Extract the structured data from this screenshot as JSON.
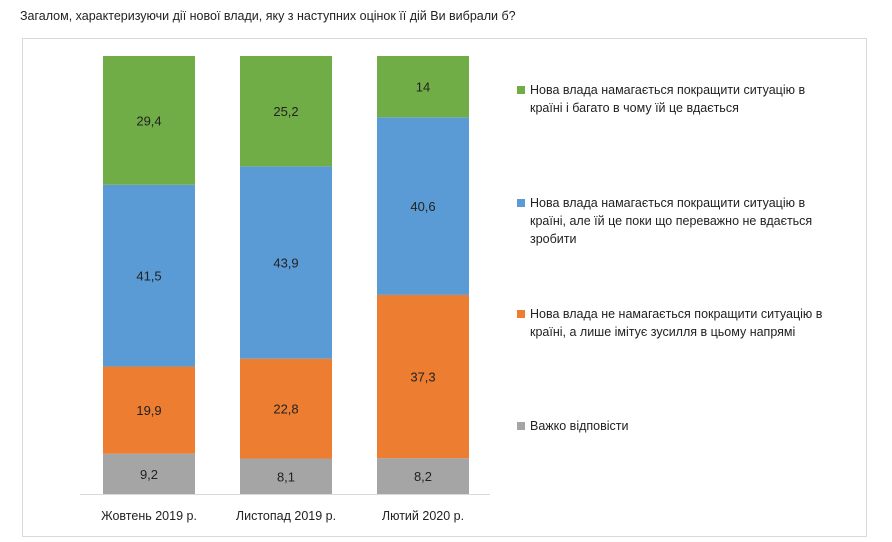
{
  "chart_data": {
    "type": "bar",
    "stacked": true,
    "title": "Загалом, характеризуючи дії нової влади, яку з наступних оцінок її дій Ви вибрали б?",
    "categories": [
      "Жовтень 2019 р.",
      "Листопад 2019 р.",
      "Лютий 2020 р."
    ],
    "series": [
      {
        "name": "Важко відповісти",
        "color": "#a5a5a5",
        "values": [
          9.2,
          8.1,
          8.2
        ],
        "labels": [
          "9,2",
          "8,1",
          "8,2"
        ],
        "legend_lines": [
          "Важко відповісти"
        ]
      },
      {
        "name": "Нова влада не намагається покращити ситуацію в країні, а лише імітує зусилля в цьому напрямі",
        "color": "#ed7d31",
        "values": [
          19.9,
          22.8,
          37.3
        ],
        "labels": [
          "19,9",
          "22,8",
          "37,3"
        ],
        "legend_lines": [
          "Нова влада не намагається покращити ситуацію в",
          "країні, а лише імітує зусилля в цьому напрямі"
        ]
      },
      {
        "name": "Нова влада намагається покращити ситуацію в країні, але їй це поки що переважно не вдається зробити",
        "color": "#5b9bd5",
        "values": [
          41.5,
          43.9,
          40.6
        ],
        "labels": [
          "41,5",
          "43,9",
          "40,6"
        ],
        "legend_lines": [
          "Нова влада намагається покращити ситуацію в",
          "країні, але їй це поки що переважно не вдається",
          "зробити"
        ]
      },
      {
        "name": "Нова влада намагається покращити ситуацію в країні і багато в чому їй це вдається",
        "color": "#70ad47",
        "values": [
          29.4,
          25.2,
          14
        ],
        "labels": [
          "29,4",
          "25,2",
          "14"
        ],
        "legend_lines": [
          "Нова влада намагається покращити ситуацію в",
          "країні і багато в чому їй це вдається"
        ]
      }
    ],
    "legend_position": "right",
    "grid": false
  }
}
